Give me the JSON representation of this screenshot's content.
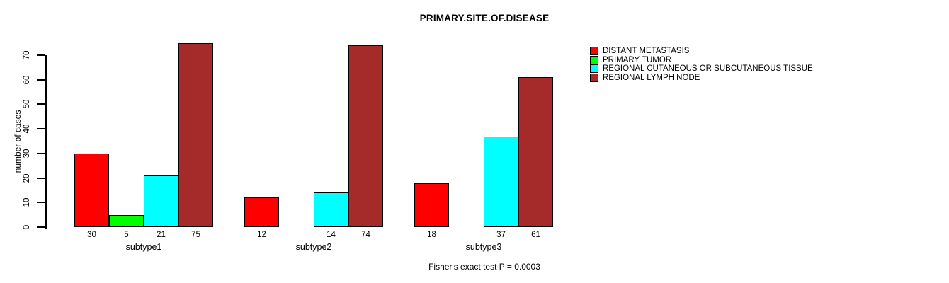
{
  "chart_data": {
    "type": "bar",
    "title": "PRIMARY.SITE.OF.DISEASE",
    "xlabel": "",
    "ylabel": "number of cases",
    "categories": [
      "subtype1",
      "subtype2",
      "subtype3"
    ],
    "series": [
      {
        "name": "DISTANT METASTASIS",
        "color": "#FF0000",
        "values": [
          30,
          12,
          18
        ]
      },
      {
        "name": "PRIMARY TUMOR",
        "color": "#00FF00",
        "values": [
          5,
          0,
          0
        ]
      },
      {
        "name": "REGIONAL CUTANEOUS OR SUBCUTANEOUS TISSUE",
        "color": "#00FFFF",
        "values": [
          21,
          14,
          37
        ]
      },
      {
        "name": "REGIONAL LYMPH NODE",
        "color": "#A52A2A",
        "values": [
          75,
          74,
          61
        ]
      }
    ],
    "bar_value_labels": [
      [
        "30",
        "5",
        "21",
        "75"
      ],
      [
        "12",
        "",
        "14",
        "74"
      ],
      [
        "18",
        "",
        "37",
        "61"
      ]
    ],
    "yticks": [
      0,
      10,
      20,
      30,
      40,
      50,
      60,
      70
    ],
    "ylim": [
      0,
      75
    ],
    "grid": false,
    "legend_position": "right",
    "annotation": "Fisher's exact test P = 0.0003"
  },
  "colors": {
    "background": "#FFFFFF",
    "axis": "#000000",
    "text": "#000000"
  }
}
